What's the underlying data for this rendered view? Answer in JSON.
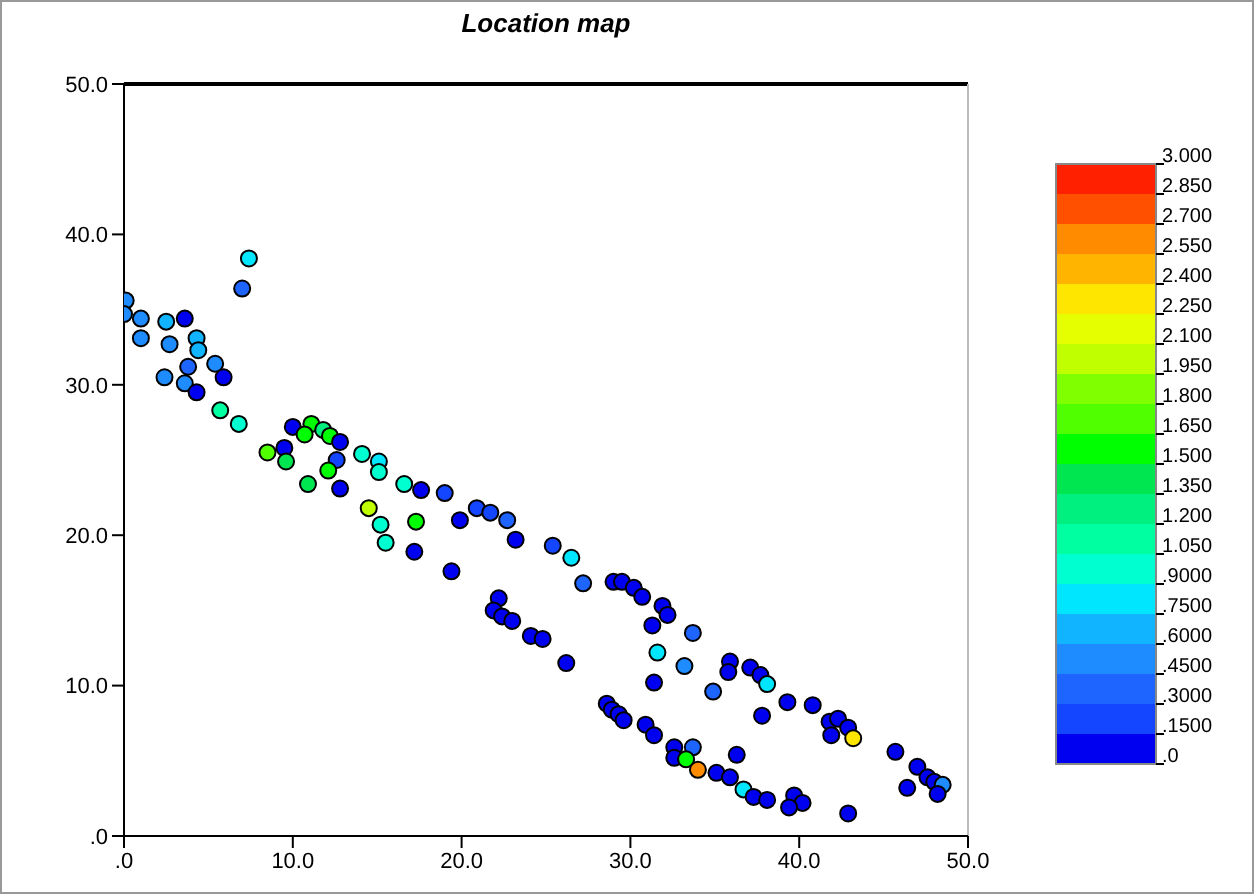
{
  "chart_data": {
    "type": "scatter",
    "title": "Location map",
    "marker": "circle",
    "xlim": [
      0,
      50
    ],
    "xticks": [
      {
        "value": 0,
        "label": ".0"
      },
      {
        "value": 10,
        "label": "10.0"
      },
      {
        "value": 20,
        "label": "20.0"
      },
      {
        "value": 30,
        "label": "30.0"
      },
      {
        "value": 40,
        "label": "40.0"
      },
      {
        "value": 50,
        "label": "50.0"
      }
    ],
    "ylim": [
      0,
      50
    ],
    "yticks": [
      {
        "value": 0,
        "label": ".0"
      },
      {
        "value": 10,
        "label": "10.0"
      },
      {
        "value": 20,
        "label": "20.0"
      },
      {
        "value": 30,
        "label": "30.0"
      },
      {
        "value": 40,
        "label": "40.0"
      },
      {
        "value": 50,
        "label": "50.0"
      }
    ],
    "clim": [
      0,
      3
    ],
    "cticks": [
      {
        "value": 0,
        "label": ".0"
      },
      {
        "value": 0.15,
        "label": ".1500"
      },
      {
        "value": 0.3,
        "label": ".3000"
      },
      {
        "value": 0.45,
        "label": ".4500"
      },
      {
        "value": 0.6,
        "label": ".6000"
      },
      {
        "value": 0.75,
        "label": ".7500"
      },
      {
        "value": 0.9,
        "label": ".9000"
      },
      {
        "value": 1.05,
        "label": "1.050"
      },
      {
        "value": 1.2,
        "label": "1.200"
      },
      {
        "value": 1.35,
        "label": "1.350"
      },
      {
        "value": 1.5,
        "label": "1.500"
      },
      {
        "value": 1.65,
        "label": "1.650"
      },
      {
        "value": 1.8,
        "label": "1.800"
      },
      {
        "value": 1.95,
        "label": "1.950"
      },
      {
        "value": 2.1,
        "label": "2.100"
      },
      {
        "value": 2.25,
        "label": "2.250"
      },
      {
        "value": 2.4,
        "label": "2.400"
      },
      {
        "value": 2.55,
        "label": "2.550"
      },
      {
        "value": 2.7,
        "label": "2.700"
      },
      {
        "value": 2.85,
        "label": "2.850"
      },
      {
        "value": 3,
        "label": "3.000"
      }
    ],
    "series": [
      {
        "x": [
          7.4,
          7.0,
          0.1,
          0,
          1.0,
          2.5,
          3.6,
          1.0,
          2.7,
          4.3,
          4.4,
          3.8,
          5.4,
          5.9,
          2.4,
          3.6,
          4.3,
          5.7,
          6.8,
          10.0,
          11.1,
          11.8,
          12.2,
          12.8,
          10.7,
          9.5,
          8.5,
          9.6,
          12.6,
          14.1,
          15.1,
          15.1,
          12.1,
          10.9,
          12.8,
          16.6,
          17.6,
          19.0,
          14.5,
          15.2,
          15.5,
          17.3,
          17.2,
          19.4,
          19.9,
          20.9,
          21.7,
          22.7,
          23.2,
          25.4,
          26.5,
          27.2,
          29.0,
          22.2,
          21.9,
          22.4,
          23.0,
          24.1,
          24.8,
          26.2,
          29.5,
          30.2,
          30.7,
          31.9,
          32.2,
          31.3,
          33.7,
          31.6,
          33.2,
          31.4,
          35.9,
          35.8,
          37.1,
          37.7,
          38.1,
          34.9,
          39.3,
          40.8,
          37.8,
          41.8,
          42.3,
          42.9,
          43.2,
          41.9,
          28.6,
          28.9,
          29.3,
          29.6,
          30.9,
          31.4,
          32.6,
          33.7,
          32.6,
          33.3,
          34.0,
          36.3,
          35.1,
          35.9,
          36.7,
          37.3,
          38.1,
          39.7,
          40.2,
          39.4,
          42.9,
          45.7,
          47.0,
          47.6,
          48.0,
          48.5,
          46.4,
          48.2
        ],
        "values": [
          38.4,
          36.4,
          35.6,
          34.7,
          34.4,
          34.2,
          34.4,
          33.1,
          32.7,
          33.1,
          32.3,
          31.2,
          31.4,
          30.5,
          30.5,
          30.1,
          29.5,
          28.3,
          27.4,
          27.2,
          27.4,
          27.0,
          26.6,
          26.2,
          26.7,
          25.8,
          25.5,
          24.9,
          25.0,
          25.4,
          24.9,
          24.2,
          24.3,
          23.4,
          23.1,
          23.4,
          23.0,
          22.8,
          21.8,
          20.7,
          19.5,
          20.9,
          18.9,
          17.6,
          21.0,
          21.8,
          21.5,
          21.0,
          19.7,
          19.3,
          18.5,
          16.8,
          16.9,
          15.8,
          15.0,
          14.6,
          14.3,
          13.3,
          13.1,
          11.5,
          16.9,
          16.5,
          15.9,
          15.3,
          14.7,
          14.0,
          13.5,
          12.2,
          11.3,
          10.2,
          11.6,
          10.9,
          11.2,
          10.7,
          10.1,
          9.6,
          8.9,
          8.7,
          8.0,
          7.6,
          7.8,
          7.2,
          6.5,
          6.7,
          8.8,
          8.4,
          8.1,
          7.7,
          7.4,
          6.7,
          5.9,
          5.9,
          5.2,
          5.1,
          4.4,
          5.4,
          4.2,
          3.9,
          3.1,
          2.6,
          2.4,
          2.7,
          2.2,
          1.9,
          1.5,
          5.6,
          4.6,
          3.9,
          3.6,
          3.4,
          3.2,
          2.8
        ],
        "cvalues": [
          0.8,
          0.35,
          0.5,
          0.5,
          0.5,
          0.65,
          0.1,
          0.5,
          0.5,
          0.65,
          0.65,
          0.35,
          0.5,
          0.1,
          0.5,
          0.5,
          0.1,
          1.1,
          0.95,
          0.1,
          1.55,
          1.3,
          1.55,
          0.1,
          1.6,
          0.1,
          1.7,
          1.4,
          0.2,
          0.95,
          0.8,
          0.95,
          1.55,
          1.4,
          0.1,
          0.95,
          0.1,
          0.2,
          2.0,
          0.95,
          0.95,
          1.6,
          0.1,
          0.1,
          0.1,
          0.2,
          0.2,
          0.35,
          0.1,
          0.2,
          0.8,
          0.35,
          0.1,
          0.1,
          0.1,
          0.1,
          0.1,
          0.1,
          0.1,
          0.1,
          0.1,
          0.1,
          0.1,
          0.1,
          0.1,
          0.1,
          0.35,
          0.8,
          0.5,
          0.1,
          0.1,
          0.1,
          0.1,
          0.1,
          0.8,
          0.35,
          0.1,
          0.1,
          0.1,
          0.1,
          0.1,
          0.1,
          2.3,
          0.1,
          0.1,
          0.1,
          0.1,
          0.1,
          0.1,
          0.1,
          0.1,
          0.35,
          0.1,
          1.55,
          2.6,
          0.1,
          0.1,
          0.1,
          0.8,
          0.1,
          0.1,
          0.1,
          0.1,
          0.1,
          0.1,
          0.1,
          0.1,
          0.1,
          0.1,
          0.5,
          0.1,
          0.1
        ]
      }
    ]
  }
}
